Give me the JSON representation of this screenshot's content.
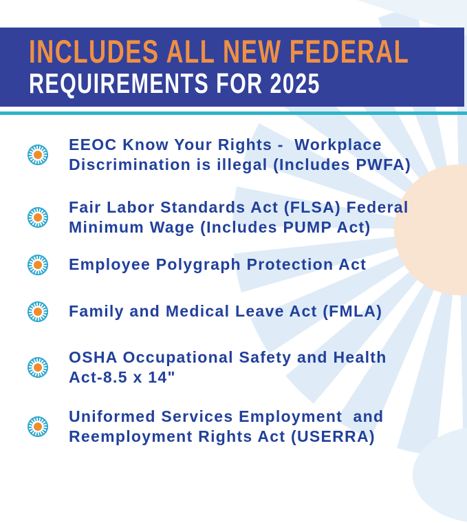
{
  "header": {
    "line1": "INCLUDES ALL NEW FEDERAL",
    "line2": "REQUIREMENTS FOR 2025"
  },
  "checklist": {
    "items": [
      {
        "lines": [
          "EEOC Know Your Rights -  Workplace",
          "Discrimination is illegal (Includes PWFA)"
        ]
      },
      {
        "lines": [
          "Fair Labor Standards Act (FLSA) Federal",
          "Minimum Wage (Includes PUMP Act)"
        ]
      },
      {
        "lines": [
          "Employee Polygraph Protection Act"
        ]
      },
      {
        "lines": [
          "Family and Medical Leave Act (FMLA)"
        ]
      },
      {
        "lines": [
          "OSHA Occupational Safety and Health",
          "Act-8.5 x 14\""
        ]
      },
      {
        "lines": [
          "Uniformed Services Employment  and",
          "Reemployment Rights Act (USERRA)"
        ]
      }
    ]
  },
  "icons": {
    "bullet": "sunburst-icon",
    "decorations": [
      "sunburst-decoration",
      "sun-circle-decoration",
      "leaf-wedge-decoration"
    ]
  },
  "colors": {
    "banner_navy": "#33419b",
    "headline_orange": "#ef9043",
    "headline_white": "#ffffff",
    "divider_teal": "#2fb4c8",
    "list_text_navy": "#21409a",
    "bullet_teal": "#2fa8d0",
    "bullet_orange": "#f08c2b",
    "background_wash_blue": "#dfecf7",
    "sun_peach": "#f9e3d1"
  }
}
